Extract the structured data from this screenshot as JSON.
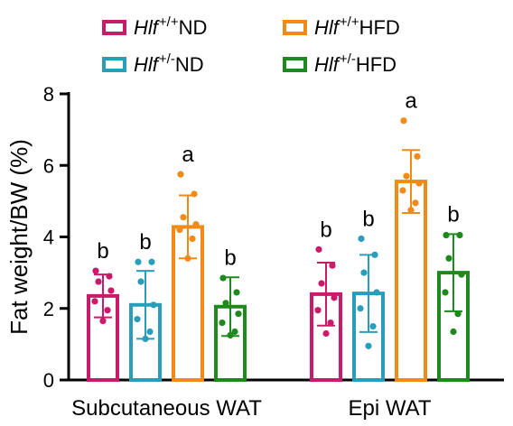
{
  "colors": {
    "wt_nd": "#cc1a6b",
    "het_nd": "#2a9dbb",
    "wt_hfd": "#f28a17",
    "het_hfd": "#1e8a1e"
  },
  "legend": [
    {
      "gene": "Hlf",
      "sup": "+/+",
      "diet": "ND",
      "color_key": "wt_nd"
    },
    {
      "gene": "Hlf",
      "sup": "+/+",
      "diet": "HFD",
      "color_key": "wt_hfd"
    },
    {
      "gene": "Hlf",
      "sup": "+/-",
      "diet": "ND",
      "color_key": "het_nd"
    },
    {
      "gene": "Hlf",
      "sup": "+/-",
      "diet": "HFD",
      "color_key": "het_hfd"
    }
  ],
  "chart_data": {
    "type": "bar",
    "ylabel": "Fat weight/BW (%)",
    "ylim": [
      0,
      8
    ],
    "yticks": [
      0,
      2,
      4,
      6,
      8
    ],
    "categories": [
      "Subcutaneous WAT",
      "Epi WAT"
    ],
    "series": [
      {
        "name": "Hlf+/+ND",
        "color_key": "wt_nd",
        "values": [
          2.35,
          2.4
        ],
        "sd": [
          0.6,
          0.88
        ],
        "letters": [
          "b",
          "b"
        ],
        "points": [
          [
            3.05,
            2.9,
            2.75,
            2.5,
            2.2,
            1.95,
            1.65
          ],
          [
            3.65,
            3.2,
            2.7,
            2.3,
            1.95,
            1.6,
            1.3
          ]
        ]
      },
      {
        "name": "Hlf+/-ND",
        "color_key": "het_nd",
        "values": [
          2.1,
          2.42
        ],
        "sd": [
          0.95,
          1.08
        ],
        "letters": [
          "b",
          "b"
        ],
        "points": [
          [
            3.3,
            3.3,
            2.75,
            2.1,
            1.7,
            1.35,
            1.15
          ],
          [
            3.95,
            3.5,
            3.0,
            2.45,
            2.0,
            1.5,
            0.95
          ]
        ]
      },
      {
        "name": "Hlf+/+HFD",
        "color_key": "wt_hfd",
        "values": [
          4.28,
          5.55
        ],
        "sd": [
          0.88,
          0.88
        ],
        "letters": [
          "a",
          "a"
        ],
        "points": [
          [
            5.75,
            5.2,
            4.55,
            4.35,
            4.2,
            3.95,
            3.4
          ],
          [
            7.25,
            6.25,
            5.7,
            5.5,
            5.3,
            4.95,
            4.75
          ]
        ]
      },
      {
        "name": "Hlf+/-HFD",
        "color_key": "het_hfd",
        "values": [
          2.05,
          3.0
        ],
        "sd": [
          0.82,
          1.08
        ],
        "letters": [
          "b",
          "b"
        ],
        "points": [
          [
            2.85,
            2.45,
            2.15,
            1.85,
            1.6,
            1.35,
            1.25
          ],
          [
            4.05,
            4.05,
            3.4,
            2.95,
            2.45,
            1.85,
            1.35
          ]
        ]
      }
    ]
  }
}
